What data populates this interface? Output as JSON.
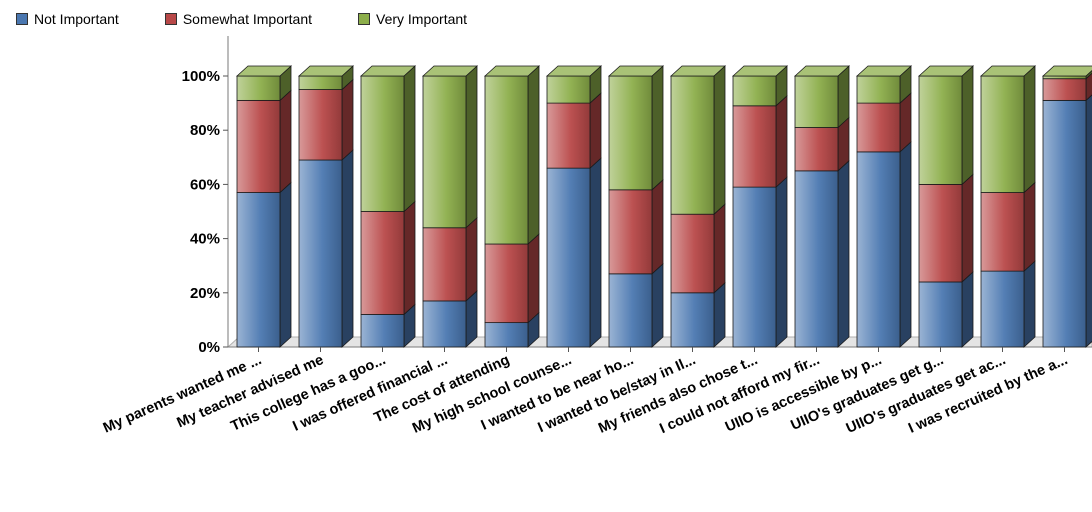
{
  "legend": {
    "items": [
      {
        "label": "Not Important",
        "color": "#4a77b0"
      },
      {
        "label": "Somewhat Important",
        "color": "#b84848"
      },
      {
        "label": "Very Important",
        "color": "#8cae4a"
      }
    ]
  },
  "chart_data": {
    "type": "bar",
    "stacked": true,
    "three_d": true,
    "legend_position": "top-left",
    "ylim": [
      0,
      100
    ],
    "yticks": [
      "0%",
      "20%",
      "40%",
      "60%",
      "80%",
      "100%"
    ],
    "categories": [
      "My parents wanted me ...",
      "My teacher advised me",
      "This college has a goo...",
      "I was offered financial ...",
      "The cost of attending",
      "My high school counse...",
      "I wanted to be near ho...",
      "I wanted to be/stay in Il...",
      "My friends also chose t...",
      "I could not afford my fir...",
      "UIIO is accessible by p...",
      "UIIO's graduates get g...",
      "UIIO's graduates get ac...",
      "I was recruited by the a..."
    ],
    "series": [
      {
        "name": "Not Important",
        "color": "#4a77b0",
        "values": [
          57,
          69,
          12,
          17,
          9,
          66,
          27,
          20,
          59,
          65,
          72,
          24,
          28,
          91
        ]
      },
      {
        "name": "Somewhat Important",
        "color": "#b84848",
        "values": [
          34,
          26,
          38,
          27,
          29,
          24,
          31,
          29,
          30,
          16,
          18,
          36,
          29,
          8
        ]
      },
      {
        "name": "Very Important",
        "color": "#8cae4a",
        "values": [
          9,
          5,
          50,
          56,
          62,
          10,
          42,
          51,
          11,
          19,
          10,
          40,
          43,
          1
        ]
      }
    ]
  }
}
